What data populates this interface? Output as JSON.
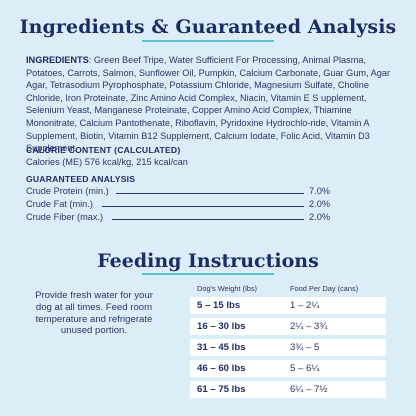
{
  "ingredients_section": {
    "title": "Ingredients & Guaranteed Analysis",
    "ingredients_label": "INGREDIENTS",
    "ingredients_text": ": Green Beef Tripe, Water Sufficient For Processing, Animal Plasma, Potatoes, Carrots, Salmon, Sunflower Oil, Pumpkin, Calcium Carbonate, Guar Gum, Agar Agar, Tetrasodium Pyrophosphate, Potassium Chloride, Magnesium Sulfate, Choline Chloride, Iron Proteinate, Zinc Amino Acid Complex, Niacin, Vitamin E S upplement, Selenium Yeast, Manganese Proteinate, Copper Amino Acid Complex, Thiamine Mononitrate, Calcium Pantothenate, Riboflavin, Pyridoxine Hydrochlo-ride, Vitamin A Supplement, Biotin, Vitamin B12 Supplement, Calcium Iodate, Folic Acid, Vitamin D3 Supplement.",
    "calorie_heading": "CALORIE CONTENT (CALCULATED)",
    "calorie_text": "Calories (ME) 576 kcal/kg, 215 kcal/can",
    "analysis_heading": "GUARANTEED ANALYSIS",
    "analysis": [
      {
        "label": "Crude Protein (min.)",
        "value": "7.0%"
      },
      {
        "label": "Crude Fat (min.)",
        "value": "2.0%"
      },
      {
        "label": "Crude Fiber (max.)",
        "value": "2.0%"
      }
    ]
  },
  "feeding_section": {
    "title": "Feeding Instructions",
    "note": "Provide fresh water for your dog at all times. Feed room temperature and refrigerate unused portion.",
    "col_weight": "Dog's Weight (lbs)",
    "col_food": "Food Per Day (cans)",
    "rows": [
      {
        "weight": "5 – 15 lbs",
        "food": "1 – 2¼"
      },
      {
        "weight": "16 – 30 lbs",
        "food": "2¼ – 3¾"
      },
      {
        "weight": "31 – 45 lbs",
        "food": "3¾ – 5"
      },
      {
        "weight": "46 – 60 lbs",
        "food": "5 – 6¼"
      },
      {
        "weight": "61 – 75 lbs",
        "food": "6¼ – 7½"
      }
    ]
  },
  "colors": {
    "navy": "#1e2c66",
    "accent": "#5ec3d0",
    "background": "#dbeef7",
    "row_bg": "#ffffff"
  }
}
